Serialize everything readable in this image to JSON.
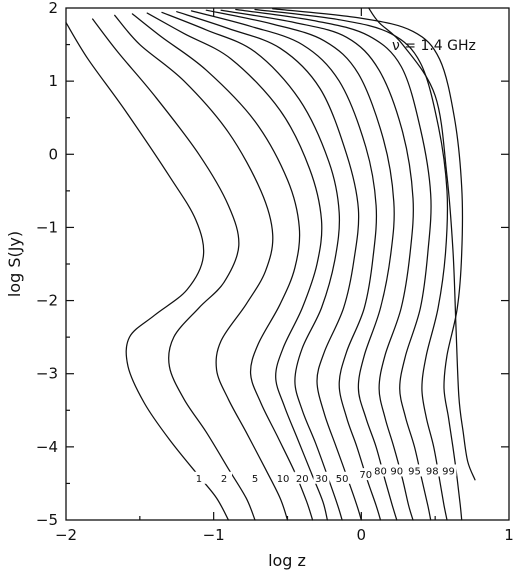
{
  "chart_data": {
    "type": "line",
    "title": "",
    "annotation": "ν = 1.4 GHz",
    "xlabel": "log z",
    "ylabel": "log S(Jy)",
    "xlim": [
      -2,
      1
    ],
    "ylim": [
      -5,
      2
    ],
    "x_ticks": [
      -2,
      -1,
      0,
      1
    ],
    "x_tick_labels": [
      "−2",
      "−1",
      "0",
      "1"
    ],
    "y_ticks": [
      2,
      1,
      0,
      -1,
      -2,
      -3,
      -4,
      -5
    ],
    "y_tick_labels": [
      "2",
      "1",
      "0",
      "−1",
      "−2",
      "−3",
      "−4",
      "−5"
    ],
    "grid": false,
    "series": [
      {
        "name": "1",
        "label_pos": {
          "x": -1.1,
          "y": -4.45
        },
        "points": [
          [
            -2.0,
            1.8
          ],
          [
            -1.85,
            1.3
          ],
          [
            -1.6,
            0.6
          ],
          [
            -1.3,
            -0.3
          ],
          [
            -1.12,
            -0.9
          ],
          [
            -1.07,
            -1.4
          ],
          [
            -1.18,
            -1.85
          ],
          [
            -1.4,
            -2.2
          ],
          [
            -1.57,
            -2.5
          ],
          [
            -1.58,
            -2.9
          ],
          [
            -1.47,
            -3.4
          ],
          [
            -1.3,
            -3.9
          ],
          [
            -1.1,
            -4.4
          ],
          [
            -0.98,
            -4.7
          ],
          [
            -0.9,
            -5.0
          ]
        ]
      },
      {
        "name": "2",
        "label_pos": {
          "x": -0.93,
          "y": -4.45
        },
        "points": [
          [
            -1.82,
            1.85
          ],
          [
            -1.65,
            1.4
          ],
          [
            -1.4,
            0.8
          ],
          [
            -1.1,
            0.0
          ],
          [
            -0.9,
            -0.7
          ],
          [
            -0.83,
            -1.25
          ],
          [
            -0.93,
            -1.75
          ],
          [
            -1.1,
            -2.1
          ],
          [
            -1.27,
            -2.5
          ],
          [
            -1.3,
            -2.9
          ],
          [
            -1.2,
            -3.35
          ],
          [
            -1.05,
            -3.8
          ],
          [
            -0.9,
            -4.3
          ],
          [
            -0.78,
            -4.7
          ],
          [
            -0.72,
            -5.0
          ]
        ]
      },
      {
        "name": "5",
        "label_pos": {
          "x": -0.72,
          "y": -4.45
        },
        "points": [
          [
            -1.67,
            1.9
          ],
          [
            -1.5,
            1.5
          ],
          [
            -1.2,
            1.0
          ],
          [
            -0.9,
            0.3
          ],
          [
            -0.68,
            -0.5
          ],
          [
            -0.6,
            -1.1
          ],
          [
            -0.65,
            -1.6
          ],
          [
            -0.78,
            -2.05
          ],
          [
            -0.95,
            -2.55
          ],
          [
            -0.98,
            -2.95
          ],
          [
            -0.9,
            -3.35
          ],
          [
            -0.78,
            -3.8
          ],
          [
            -0.65,
            -4.3
          ],
          [
            -0.55,
            -4.7
          ],
          [
            -0.5,
            -5.0
          ]
        ]
      },
      {
        "name": "10",
        "label_pos": {
          "x": -0.53,
          "y": -4.45
        },
        "points": [
          [
            -1.55,
            1.92
          ],
          [
            -1.35,
            1.6
          ],
          [
            -1.05,
            1.15
          ],
          [
            -0.72,
            0.45
          ],
          [
            -0.5,
            -0.35
          ],
          [
            -0.42,
            -1.0
          ],
          [
            -0.45,
            -1.55
          ],
          [
            -0.55,
            -2.05
          ],
          [
            -0.7,
            -2.6
          ],
          [
            -0.75,
            -3.0
          ],
          [
            -0.68,
            -3.4
          ],
          [
            -0.57,
            -3.85
          ],
          [
            -0.45,
            -4.35
          ],
          [
            -0.37,
            -4.75
          ],
          [
            -0.33,
            -5.0
          ]
        ]
      },
      {
        "name": "20",
        "label_pos": {
          "x": -0.4,
          "y": -4.45
        },
        "points": [
          [
            -1.45,
            1.93
          ],
          [
            -1.2,
            1.65
          ],
          [
            -0.88,
            1.3
          ],
          [
            -0.55,
            0.6
          ],
          [
            -0.35,
            -0.2
          ],
          [
            -0.27,
            -0.9
          ],
          [
            -0.3,
            -1.5
          ],
          [
            -0.4,
            -2.1
          ],
          [
            -0.53,
            -2.65
          ],
          [
            -0.58,
            -3.05
          ],
          [
            -0.52,
            -3.45
          ],
          [
            -0.43,
            -3.9
          ],
          [
            -0.33,
            -4.4
          ],
          [
            -0.26,
            -4.75
          ],
          [
            -0.23,
            -5.0
          ]
        ]
      },
      {
        "name": "30",
        "label_pos": {
          "x": -0.27,
          "y": -4.45
        },
        "points": [
          [
            -1.35,
            1.94
          ],
          [
            -1.05,
            1.7
          ],
          [
            -0.72,
            1.4
          ],
          [
            -0.42,
            0.75
          ],
          [
            -0.22,
            -0.1
          ],
          [
            -0.15,
            -0.8
          ],
          [
            -0.18,
            -1.45
          ],
          [
            -0.27,
            -2.1
          ],
          [
            -0.4,
            -2.65
          ],
          [
            -0.45,
            -3.1
          ],
          [
            -0.4,
            -3.5
          ],
          [
            -0.31,
            -3.95
          ],
          [
            -0.22,
            -4.45
          ],
          [
            -0.16,
            -4.8
          ],
          [
            -0.13,
            -5.0
          ]
        ]
      },
      {
        "name": "50",
        "label_pos": {
          "x": -0.13,
          "y": -4.45
        },
        "points": [
          [
            -1.25,
            1.95
          ],
          [
            -0.9,
            1.72
          ],
          [
            -0.55,
            1.45
          ],
          [
            -0.28,
            0.9
          ],
          [
            -0.1,
            0.0
          ],
          [
            -0.02,
            -0.75
          ],
          [
            -0.05,
            -1.45
          ],
          [
            -0.12,
            -2.1
          ],
          [
            -0.25,
            -2.7
          ],
          [
            -0.3,
            -3.1
          ],
          [
            -0.25,
            -3.55
          ],
          [
            -0.17,
            -4.0
          ],
          [
            -0.09,
            -4.45
          ],
          [
            -0.03,
            -4.8
          ],
          [
            0.0,
            -5.0
          ]
        ]
      },
      {
        "name": "70",
        "label_pos": {
          "x": 0.03,
          "y": -4.4
        },
        "points": [
          [
            -1.15,
            1.96
          ],
          [
            -0.75,
            1.75
          ],
          [
            -0.4,
            1.5
          ],
          [
            -0.15,
            1.0
          ],
          [
            0.03,
            0.1
          ],
          [
            0.1,
            -0.7
          ],
          [
            0.08,
            -1.4
          ],
          [
            0.02,
            -2.1
          ],
          [
            -0.1,
            -2.7
          ],
          [
            -0.15,
            -3.15
          ],
          [
            -0.1,
            -3.6
          ],
          [
            -0.03,
            -4.0
          ],
          [
            0.04,
            -4.45
          ],
          [
            0.1,
            -4.8
          ],
          [
            0.13,
            -5.0
          ]
        ]
      },
      {
        "name": "80",
        "label_pos": {
          "x": 0.13,
          "y": -4.35
        },
        "points": [
          [
            -1.05,
            1.97
          ],
          [
            -0.6,
            1.78
          ],
          [
            -0.25,
            1.55
          ],
          [
            -0.02,
            1.1
          ],
          [
            0.15,
            0.2
          ],
          [
            0.22,
            -0.65
          ],
          [
            0.2,
            -1.35
          ],
          [
            0.13,
            -2.1
          ],
          [
            0.02,
            -2.75
          ],
          [
            -0.02,
            -3.2
          ],
          [
            0.03,
            -3.6
          ],
          [
            0.1,
            -4.0
          ],
          [
            0.16,
            -4.45
          ],
          [
            0.21,
            -4.8
          ],
          [
            0.24,
            -5.0
          ]
        ]
      },
      {
        "name": "90",
        "label_pos": {
          "x": 0.24,
          "y": -4.35
        },
        "points": [
          [
            -0.95,
            1.97
          ],
          [
            -0.45,
            1.8
          ],
          [
            -0.1,
            1.6
          ],
          [
            0.12,
            1.15
          ],
          [
            0.28,
            0.3
          ],
          [
            0.35,
            -0.6
          ],
          [
            0.33,
            -1.35
          ],
          [
            0.27,
            -2.1
          ],
          [
            0.16,
            -2.75
          ],
          [
            0.12,
            -3.2
          ],
          [
            0.16,
            -3.6
          ],
          [
            0.22,
            -4.0
          ],
          [
            0.28,
            -4.45
          ],
          [
            0.32,
            -4.8
          ],
          [
            0.35,
            -5.0
          ]
        ]
      },
      {
        "name": "95",
        "label_pos": {
          "x": 0.36,
          "y": -4.35
        },
        "points": [
          [
            -0.85,
            1.98
          ],
          [
            -0.3,
            1.82
          ],
          [
            0.05,
            1.62
          ],
          [
            0.27,
            1.2
          ],
          [
            0.4,
            0.35
          ],
          [
            0.47,
            -0.55
          ],
          [
            0.45,
            -1.35
          ],
          [
            0.4,
            -2.1
          ],
          [
            0.3,
            -2.75
          ],
          [
            0.26,
            -3.2
          ],
          [
            0.3,
            -3.6
          ],
          [
            0.36,
            -4.0
          ],
          [
            0.41,
            -4.45
          ],
          [
            0.45,
            -4.8
          ],
          [
            0.47,
            -5.0
          ]
        ]
      },
      {
        "name": "98",
        "label_pos": {
          "x": 0.48,
          "y": -4.35
        },
        "points": [
          [
            -0.72,
            1.98
          ],
          [
            -0.15,
            1.84
          ],
          [
            0.2,
            1.65
          ],
          [
            0.4,
            1.25
          ],
          [
            0.52,
            0.4
          ],
          [
            0.58,
            -0.5
          ],
          [
            0.57,
            -1.35
          ],
          [
            0.52,
            -2.1
          ],
          [
            0.44,
            -2.75
          ],
          [
            0.41,
            -3.2
          ],
          [
            0.44,
            -3.6
          ],
          [
            0.49,
            -4.0
          ],
          [
            0.53,
            -4.45
          ],
          [
            0.56,
            -4.8
          ],
          [
            0.58,
            -5.0
          ]
        ]
      },
      {
        "name": "99",
        "label_pos": {
          "x": 0.59,
          "y": -4.35
        },
        "points": [
          [
            -0.6,
            1.99
          ],
          [
            0.0,
            1.86
          ],
          [
            0.35,
            1.68
          ],
          [
            0.53,
            1.3
          ],
          [
            0.63,
            0.5
          ],
          [
            0.68,
            -0.45
          ],
          [
            0.68,
            -1.35
          ],
          [
            0.65,
            -2.1
          ],
          [
            0.58,
            -2.75
          ],
          [
            0.56,
            -3.2
          ],
          [
            0.59,
            -3.6
          ],
          [
            0.62,
            -4.0
          ],
          [
            0.65,
            -4.45
          ],
          [
            0.67,
            -4.8
          ],
          [
            0.68,
            -5.0
          ]
        ]
      },
      {
        "name": "",
        "label_pos": null,
        "points": [
          [
            0.05,
            2.0
          ],
          [
            0.12,
            1.8
          ],
          [
            0.28,
            1.5
          ],
          [
            0.5,
            0.8
          ],
          [
            0.58,
            -0.3
          ],
          [
            0.62,
            -1.3
          ],
          [
            0.64,
            -2.3
          ],
          [
            0.66,
            -3.3
          ],
          [
            0.69,
            -3.8
          ],
          [
            0.72,
            -4.2
          ],
          [
            0.77,
            -4.45
          ]
        ]
      }
    ]
  }
}
